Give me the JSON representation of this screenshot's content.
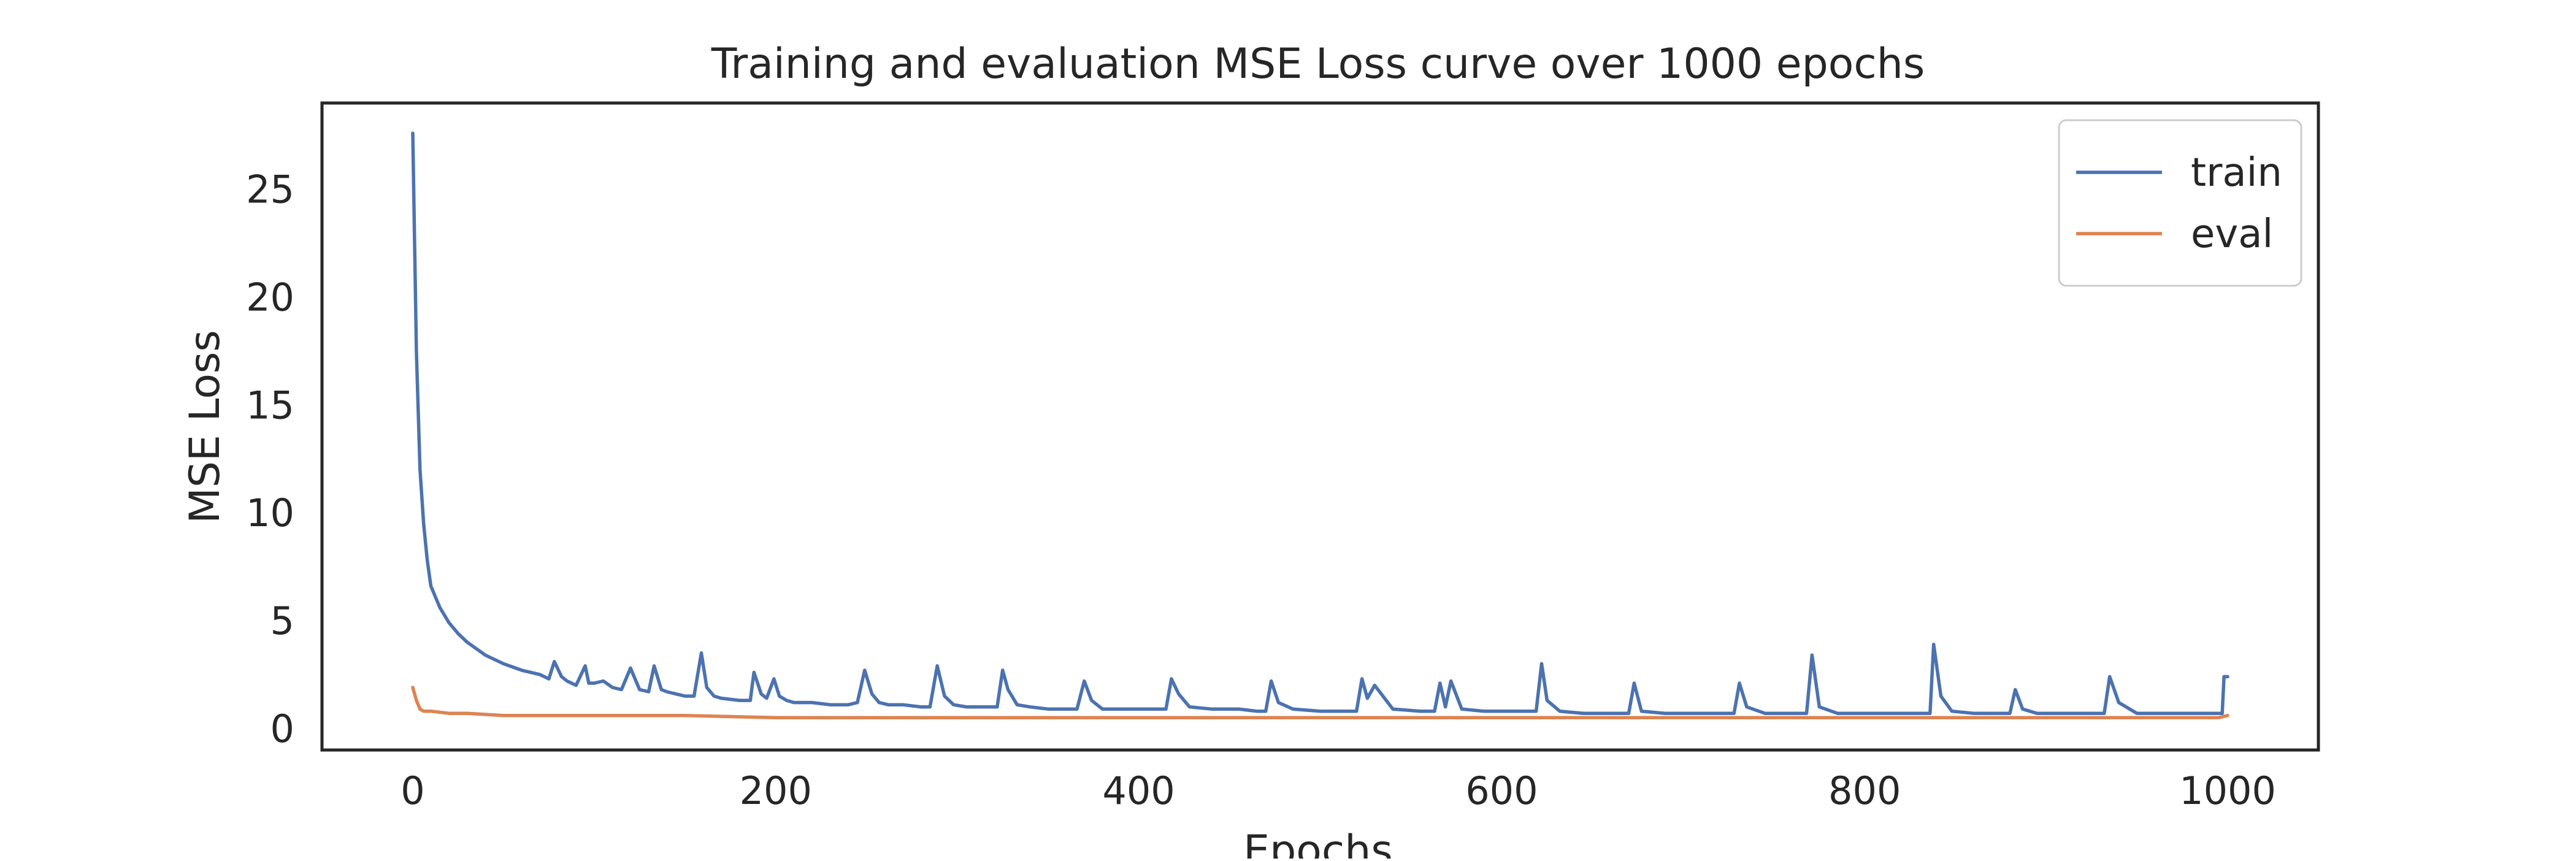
{
  "chart_data": {
    "type": "line",
    "title": "Training and evaluation MSE Loss curve over 1000 epochs",
    "xlabel": "Epochs",
    "ylabel": "MSE Loss",
    "xlim": [
      -50,
      1050
    ],
    "ylim": [
      -1,
      29
    ],
    "xticks": [
      0,
      200,
      400,
      600,
      800,
      1000
    ],
    "yticks": [
      0,
      5,
      10,
      15,
      20,
      25
    ],
    "grid": false,
    "legend_position": "top-right",
    "series": [
      {
        "name": "train",
        "color": "#4c72b0",
        "x": [
          0,
          2,
          4,
          6,
          8,
          10,
          15,
          20,
          25,
          30,
          40,
          50,
          60,
          70,
          75,
          78,
          82,
          85,
          90,
          95,
          97,
          100,
          105,
          110,
          115,
          120,
          125,
          130,
          133,
          137,
          140,
          145,
          150,
          155,
          159,
          162,
          166,
          170,
          180,
          186,
          188,
          192,
          195,
          199,
          202,
          206,
          210,
          220,
          230,
          240,
          245,
          249,
          253,
          257,
          262,
          270,
          280,
          285,
          289,
          293,
          298,
          305,
          315,
          322,
          325,
          328,
          333,
          340,
          350,
          360,
          366,
          370,
          374,
          380,
          390,
          400,
          410,
          415,
          418,
          422,
          428,
          440,
          455,
          465,
          470,
          473,
          477,
          485,
          500,
          515,
          520,
          523,
          526,
          530,
          540,
          555,
          563,
          566,
          569,
          572,
          578,
          590,
          605,
          615,
          619,
          622,
          625,
          632,
          645,
          660,
          670,
          673,
          677,
          690,
          705,
          720,
          728,
          731,
          735,
          745,
          760,
          765,
          768,
          771,
          775,
          785,
          800,
          820,
          830,
          836,
          838,
          842,
          848,
          860,
          875,
          880,
          883,
          887,
          895,
          910,
          925,
          932,
          935,
          940,
          950,
          965,
          985,
          995,
          997,
          998,
          1000
        ],
        "values": [
          27.6,
          17.5,
          12.0,
          9.5,
          7.8,
          6.6,
          5.6,
          4.9,
          4.4,
          4.0,
          3.4,
          3.0,
          2.7,
          2.5,
          2.3,
          3.1,
          2.4,
          2.2,
          2.0,
          2.9,
          2.1,
          2.1,
          2.2,
          1.9,
          1.8,
          2.8,
          1.8,
          1.7,
          2.9,
          1.8,
          1.7,
          1.6,
          1.5,
          1.5,
          3.5,
          1.9,
          1.5,
          1.4,
          1.3,
          1.3,
          2.6,
          1.6,
          1.4,
          2.3,
          1.5,
          1.3,
          1.2,
          1.2,
          1.1,
          1.1,
          1.2,
          2.7,
          1.6,
          1.2,
          1.1,
          1.1,
          1.0,
          1.0,
          2.9,
          1.5,
          1.1,
          1.0,
          1.0,
          1.0,
          2.7,
          1.8,
          1.1,
          1.0,
          0.9,
          0.9,
          0.9,
          2.2,
          1.3,
          0.9,
          0.9,
          0.9,
          0.9,
          0.9,
          2.3,
          1.6,
          1.0,
          0.9,
          0.9,
          0.8,
          0.8,
          2.2,
          1.2,
          0.9,
          0.8,
          0.8,
          0.8,
          2.3,
          1.4,
          2.0,
          0.9,
          0.8,
          0.8,
          2.1,
          1.0,
          2.2,
          0.9,
          0.8,
          0.8,
          0.8,
          0.8,
          3.0,
          1.3,
          0.8,
          0.7,
          0.7,
          0.7,
          2.1,
          0.8,
          0.7,
          0.7,
          0.7,
          0.7,
          2.1,
          1.0,
          0.7,
          0.7,
          0.7,
          0.7,
          3.4,
          1.0,
          0.7,
          0.7,
          0.7,
          0.7,
          0.7,
          3.9,
          1.5,
          0.8,
          0.7,
          0.7,
          0.7,
          1.8,
          0.9,
          0.7,
          0.7,
          0.7,
          0.7,
          2.4,
          1.2,
          0.7,
          0.7,
          0.7,
          0.7,
          0.7,
          2.4,
          2.4
        ]
      },
      {
        "name": "eval",
        "color": "#dd8452",
        "x": [
          0,
          2,
          4,
          6,
          10,
          20,
          30,
          50,
          100,
          150,
          200,
          300,
          400,
          500,
          600,
          700,
          800,
          900,
          995,
          1000
        ],
        "values": [
          1.9,
          1.3,
          0.9,
          0.8,
          0.8,
          0.7,
          0.7,
          0.6,
          0.6,
          0.6,
          0.5,
          0.5,
          0.5,
          0.5,
          0.5,
          0.5,
          0.5,
          0.5,
          0.5,
          0.6
        ]
      }
    ]
  }
}
